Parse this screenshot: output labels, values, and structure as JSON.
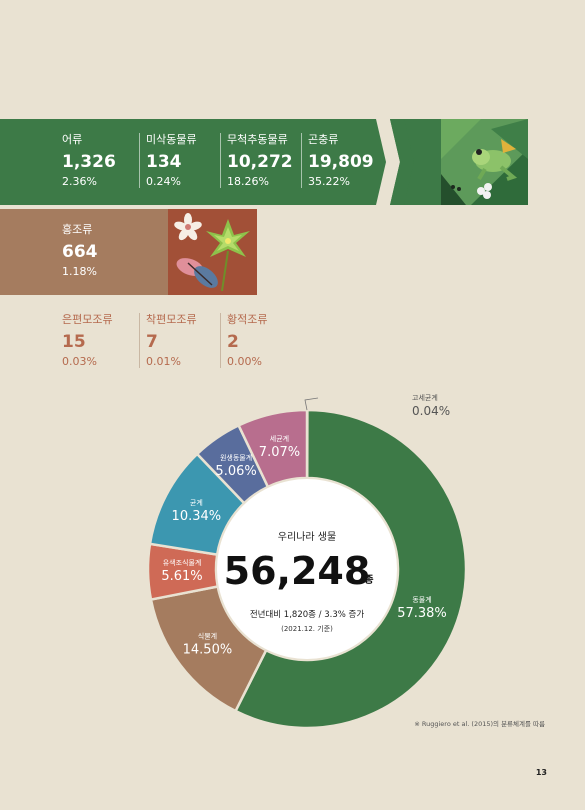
{
  "top_row": [
    {
      "label": "어류",
      "count": "1,326",
      "percent": "2.36%"
    },
    {
      "label": "미삭동물류",
      "count": "134",
      "percent": "0.24%"
    },
    {
      "label": "무척추동물류",
      "count": "10,272",
      "percent": "18.26%"
    },
    {
      "label": "곤충류",
      "count": "19,809",
      "percent": "35.22%"
    }
  ],
  "second_row": [
    {
      "label": "홍조류",
      "count": "664",
      "percent": "1.18%"
    }
  ],
  "third_row": [
    {
      "label": "은편모조류",
      "count": "15",
      "percent": "0.03%"
    },
    {
      "label": "착편모조류",
      "count": "7",
      "percent": "0.01%"
    },
    {
      "label": "황적조류",
      "count": "2",
      "percent": "0.00%"
    }
  ],
  "donut": {
    "center_title": "우리나라 생물",
    "center_number": "56,248",
    "center_unit": "종",
    "center_change": "전년대비 1,820종 / 3.3% 증가",
    "center_basis": "(2021.12. 기준)"
  },
  "footnote": "※ Ruggiero et al. (2015)의 분류체계를 따름",
  "page_number": "13",
  "colors": {
    "green": "#3d7a47",
    "brown": "#a57c5f",
    "red_label": "#b56a4e",
    "background": "#e9e2d2"
  },
  "chart_data": {
    "type": "pie",
    "categories": [
      "고세균계",
      "동물계",
      "식물계",
      "유색조식물계",
      "균계",
      "원생동물계",
      "세균계"
    ],
    "values": [
      0.04,
      57.38,
      14.5,
      5.61,
      10.34,
      5.06,
      7.07
    ],
    "labels": [
      "0.04%",
      "57.38%",
      "14.50%",
      "5.61%",
      "10.34%",
      "5.06%",
      "7.07%"
    ],
    "colors": [
      "#8a8a8a",
      "#3d7a47",
      "#a57c5f",
      "#cf6a56",
      "#3c97b0",
      "#596d9d",
      "#b86e8e"
    ]
  }
}
